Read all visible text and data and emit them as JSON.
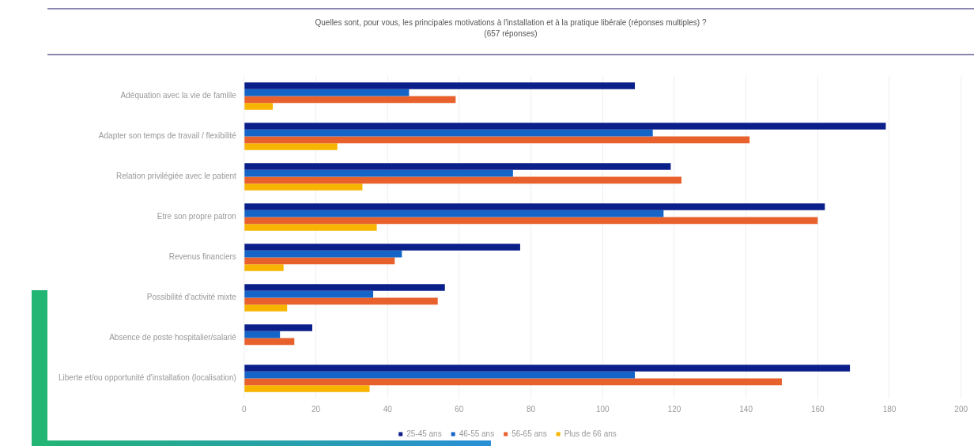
{
  "chart_data": {
    "type": "bar",
    "orientation": "horizontal",
    "title": "Quelles sont, pour vous, les principales motivations à l'installation et à la pratique libérale (réponses multiples) ?",
    "subtitle": "(657 réponses)",
    "categories": [
      "Adéquation avec la vie de famille",
      "Adapter son temps de travail / flexibilité",
      "Relation privilégiée avec le patient",
      "Etre son propre patron",
      "Revenus financiers",
      "Possibilité d'activité mixte",
      "Absence de poste hospitalier/salarié",
      "Liberte et/ou opportunité d'installation (localisation)"
    ],
    "series": [
      {
        "name": "25-45 ans",
        "color": "#0b1f8a",
        "values": [
          109,
          179,
          119,
          162,
          77,
          56,
          19,
          169
        ]
      },
      {
        "name": "46-55 ans",
        "color": "#1565c8",
        "values": [
          46,
          114,
          75,
          117,
          44,
          36,
          10,
          109
        ]
      },
      {
        "name": "56-65 ans",
        "color": "#e8612c",
        "values": [
          59,
          141,
          122,
          160,
          42,
          54,
          14,
          150
        ]
      },
      {
        "name": "Plus de 66 ans",
        "color": "#f7b500",
        "values": [
          8,
          26,
          33,
          37,
          11,
          12,
          0,
          35
        ]
      }
    ],
    "xlim": [
      0,
      200
    ],
    "xticks": [
      0,
      20,
      40,
      60,
      80,
      100,
      120,
      140,
      160,
      180,
      200
    ],
    "grid": "x",
    "legend": "bottom"
  }
}
